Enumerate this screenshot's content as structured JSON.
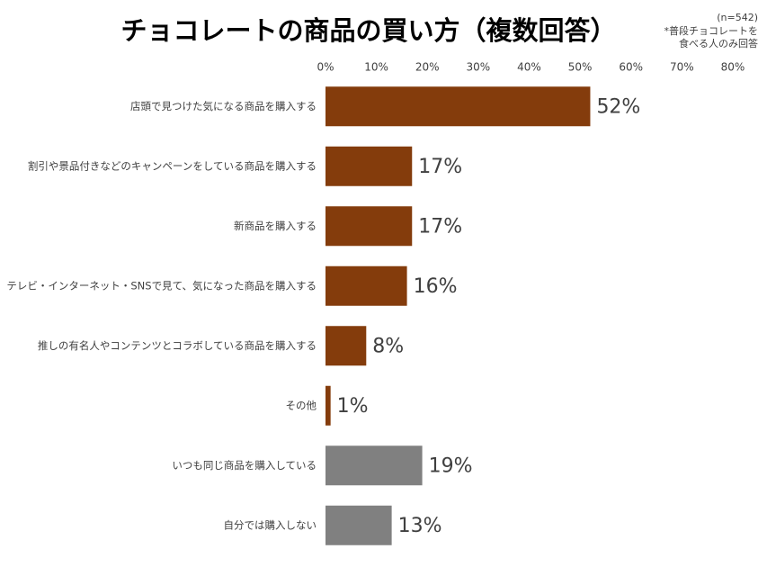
{
  "chart_data": {
    "type": "bar",
    "orientation": "horizontal",
    "title": "チョコレートの商品の買い方（複数回答）",
    "notes": [
      "(n=542)",
      "*普段チョコレートを",
      "食べる人のみ回答"
    ],
    "categories": [
      "店頭で見つけた気になる商品を購入する",
      "割引や景品付きなどのキャンペーンをしている商品を購入する",
      "新商品を購入する",
      "テレビ・インターネット・SNSで見て、気になった商品を購入する",
      "推しの有名人やコンテンツとコラボしている商品を購入する",
      "その他",
      "いつも同じ商品を購入している",
      "自分では購入しない"
    ],
    "values": [
      52,
      17,
      17,
      16,
      8,
      1,
      19,
      13
    ],
    "value_labels": [
      "52%",
      "17%",
      "17%",
      "16%",
      "8%",
      "1%",
      "19%",
      "13%"
    ],
    "colors": [
      "#843c0c",
      "#843c0c",
      "#843c0c",
      "#843c0c",
      "#843c0c",
      "#843c0c",
      "#808080",
      "#808080"
    ],
    "xlim": [
      0,
      80
    ],
    "xticks": [
      {
        "value": 0,
        "label": "0%"
      },
      {
        "value": 10,
        "label": "10%"
      },
      {
        "value": 20,
        "label": "20%"
      },
      {
        "value": 30,
        "label": "30%"
      },
      {
        "value": 40,
        "label": "40%"
      },
      {
        "value": 50,
        "label": "50%"
      },
      {
        "value": 60,
        "label": "60%"
      },
      {
        "value": 70,
        "label": "70%"
      },
      {
        "value": 80,
        "label": "80%"
      }
    ],
    "grid": false
  }
}
